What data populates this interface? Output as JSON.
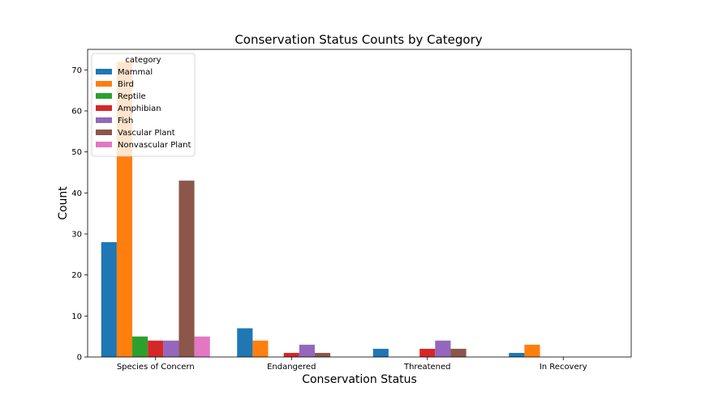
{
  "chart_data": {
    "type": "bar",
    "title": "Conservation Status Counts by Category",
    "xlabel": "Conservation Status",
    "ylabel": "Count",
    "categories": [
      "Species of Concern",
      "Endangered",
      "Threatened",
      "In Recovery"
    ],
    "ylim": [
      0,
      75
    ],
    "yticks": [
      0,
      10,
      20,
      30,
      40,
      50,
      60,
      70
    ],
    "grid": false,
    "legend": {
      "title": "category",
      "placement": "top-left"
    },
    "series": [
      {
        "name": "Mammal",
        "color": "#1f77b4",
        "values": [
          28,
          7,
          2,
          1
        ]
      },
      {
        "name": "Bird",
        "color": "#ff7f0e",
        "values": [
          72,
          4,
          0,
          3
        ]
      },
      {
        "name": "Reptile",
        "color": "#2ca02c",
        "values": [
          5,
          0,
          0,
          0
        ]
      },
      {
        "name": "Amphibian",
        "color": "#d62728",
        "values": [
          4,
          1,
          2,
          0
        ]
      },
      {
        "name": "Fish",
        "color": "#9467bd",
        "values": [
          4,
          3,
          4,
          0
        ]
      },
      {
        "name": "Vascular Plant",
        "color": "#8c564b",
        "values": [
          43,
          1,
          2,
          0
        ]
      },
      {
        "name": "Nonvascular Plant",
        "color": "#e377c2",
        "values": [
          5,
          0,
          0,
          0
        ]
      }
    ]
  }
}
